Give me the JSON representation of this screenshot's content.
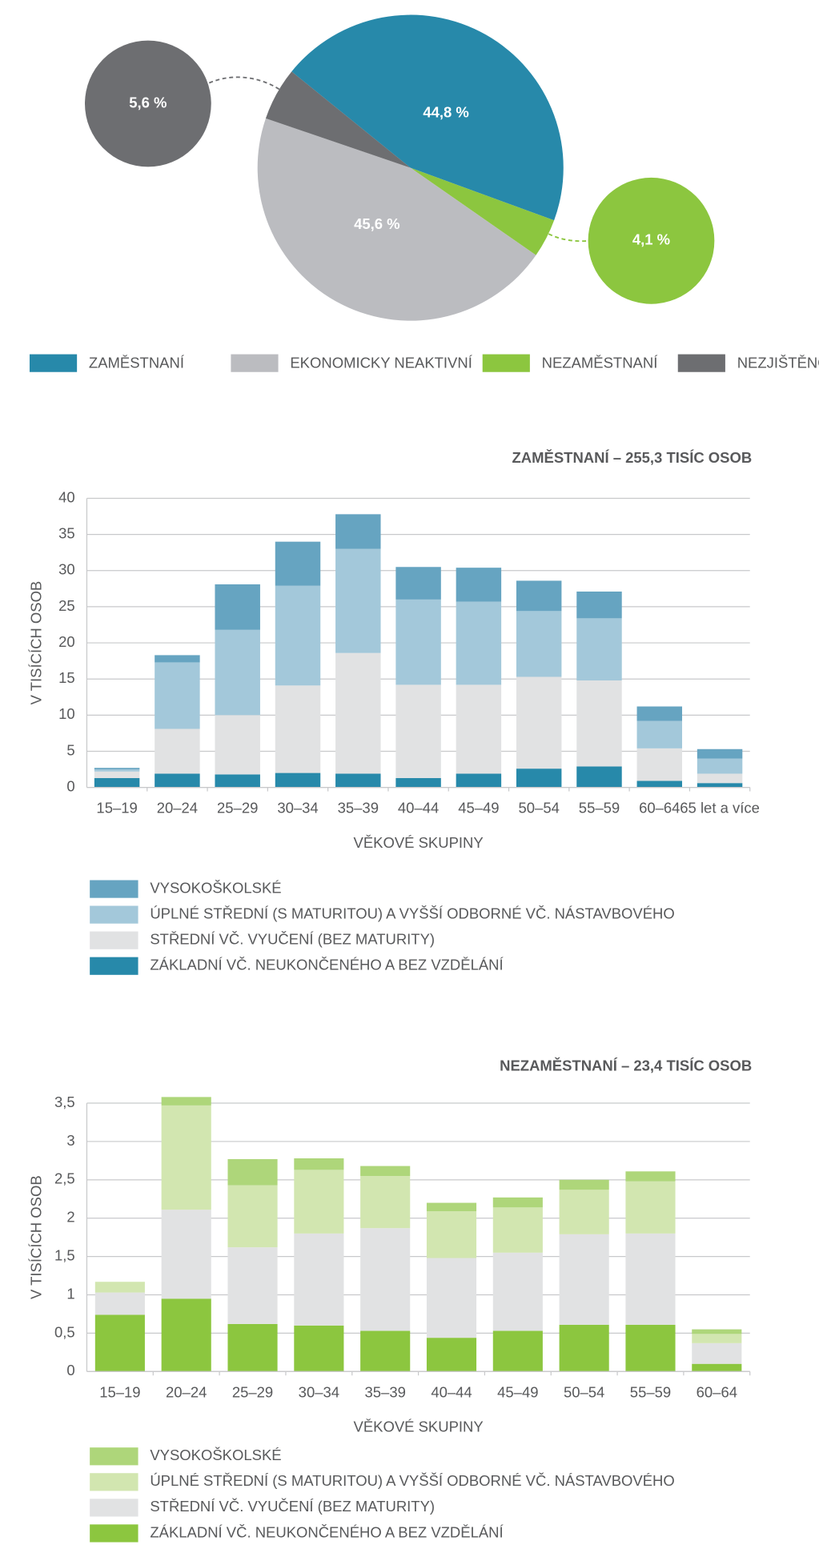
{
  "chart_data": [
    {
      "type": "pie",
      "categories": [
        "ZAMĚSTNANÍ",
        "EKONOMICKY NEAKTIVNÍ",
        "NEZAMĚSTNANÍ",
        "NEZJIŠTĚNO"
      ],
      "values": [
        44.8,
        45.6,
        4.1,
        5.6
      ],
      "value_labels": [
        "44,8 %",
        "45,6 %",
        "4,1 %",
        "5,6 %"
      ],
      "colors": [
        "#2789aa",
        "#bbbcc0",
        "#8cc63f",
        "#6d6e71"
      ]
    },
    {
      "type": "stacked_bar",
      "title": "ZAMĚSTNANÍ – 255,3 TISÍC OSOB",
      "title_color": "#2789aa",
      "ylabel": "V TISÍCÍCH OSOB",
      "xlabel": "VĚKOVÉ SKUPINY",
      "categories": [
        "15–19",
        "20–24",
        "25–29",
        "30–34",
        "35–39",
        "40–44",
        "45–49",
        "50–54",
        "55–59",
        "60–64",
        "65 let a více"
      ],
      "series": [
        {
          "name": "VYSOKOŠKOLSKÉ",
          "color": "#66a4c1",
          "values": [
            0.2,
            1.0,
            6.3,
            6.1,
            4.8,
            4.5,
            4.7,
            4.2,
            3.7,
            2.0,
            1.3
          ]
        },
        {
          "name": "ÚPLNÉ STŘEDNÍ (S MATURITOU) A VYŠŠÍ ODBORNÉ VČ. NÁSTAVBOVÉHO",
          "color": "#a3c8da",
          "values": [
            0.3,
            9.2,
            11.8,
            13.8,
            14.4,
            11.8,
            11.5,
            9.1,
            8.6,
            3.8,
            2.1
          ]
        },
        {
          "name": "STŘEDNÍ VČ. VYUČENÍ (BEZ MATURITY)",
          "color": "#e1e2e3",
          "values": [
            0.9,
            6.2,
            8.2,
            12.1,
            16.7,
            12.9,
            12.3,
            12.7,
            11.9,
            4.5,
            1.3
          ]
        },
        {
          "name": "ZÁKLADNÍ VČ. NEUKONČENÉHO A BEZ VZDĚLÁNÍ",
          "color": "#2789aa",
          "values": [
            1.3,
            1.9,
            1.8,
            2.0,
            1.9,
            1.3,
            1.9,
            2.6,
            2.9,
            0.9,
            0.6
          ]
        }
      ],
      "ylim": [
        0,
        40
      ],
      "yticks": [
        0,
        5,
        10,
        15,
        20,
        25,
        30,
        35,
        40
      ],
      "grid": true
    },
    {
      "type": "stacked_bar",
      "title": "NEZAMĚSTNANÍ – 23,4 TISÍC OSOB",
      "title_color": "#8cc63f",
      "ylabel": "V TISÍCÍCH OSOB",
      "xlabel": "VĚKOVÉ SKUPINY",
      "categories": [
        "15–19",
        "20–24",
        "25–29",
        "30–34",
        "35–39",
        "40–44",
        "45–49",
        "50–54",
        "55–59",
        "60–64"
      ],
      "series": [
        {
          "name": "VYSOKOŠKOLSKÉ",
          "color": "#aed67a",
          "values": [
            0,
            0.11,
            0.34,
            0.15,
            0.13,
            0.11,
            0.13,
            0.13,
            0.13,
            0.06
          ]
        },
        {
          "name": "ÚPLNÉ STŘEDNÍ (S MATURITOU) A VYŠŠÍ ODBORNÉ VČ. NÁSTAVBOVÉHO",
          "color": "#d2e6b0",
          "values": [
            0.14,
            1.36,
            0.81,
            0.83,
            0.68,
            0.61,
            0.59,
            0.58,
            0.68,
            0.12
          ]
        },
        {
          "name": "STŘEDNÍ VČ. VYUČENÍ (BEZ MATURITY)",
          "color": "#e1e2e3",
          "values": [
            0.29,
            1.16,
            1.0,
            1.2,
            1.34,
            1.04,
            1.02,
            1.18,
            1.19,
            0.27
          ]
        },
        {
          "name": "ZÁKLADNÍ VČ. NEUKONČENÉHO A BEZ VZDĚLÁNÍ",
          "color": "#8cc63f",
          "values": [
            0.74,
            0.95,
            0.62,
            0.6,
            0.53,
            0.44,
            0.53,
            0.61,
            0.61,
            0.1
          ]
        }
      ],
      "ylim": [
        0,
        3.5
      ],
      "yticks": [
        0,
        {
          "value": 0.5,
          "label": "0,5"
        },
        1,
        {
          "value": 1.5,
          "label": "1,5"
        },
        2,
        {
          "value": 2.5,
          "label": "2,5"
        },
        3,
        {
          "value": 3.5,
          "label": "3,5"
        }
      ],
      "grid": true
    }
  ]
}
